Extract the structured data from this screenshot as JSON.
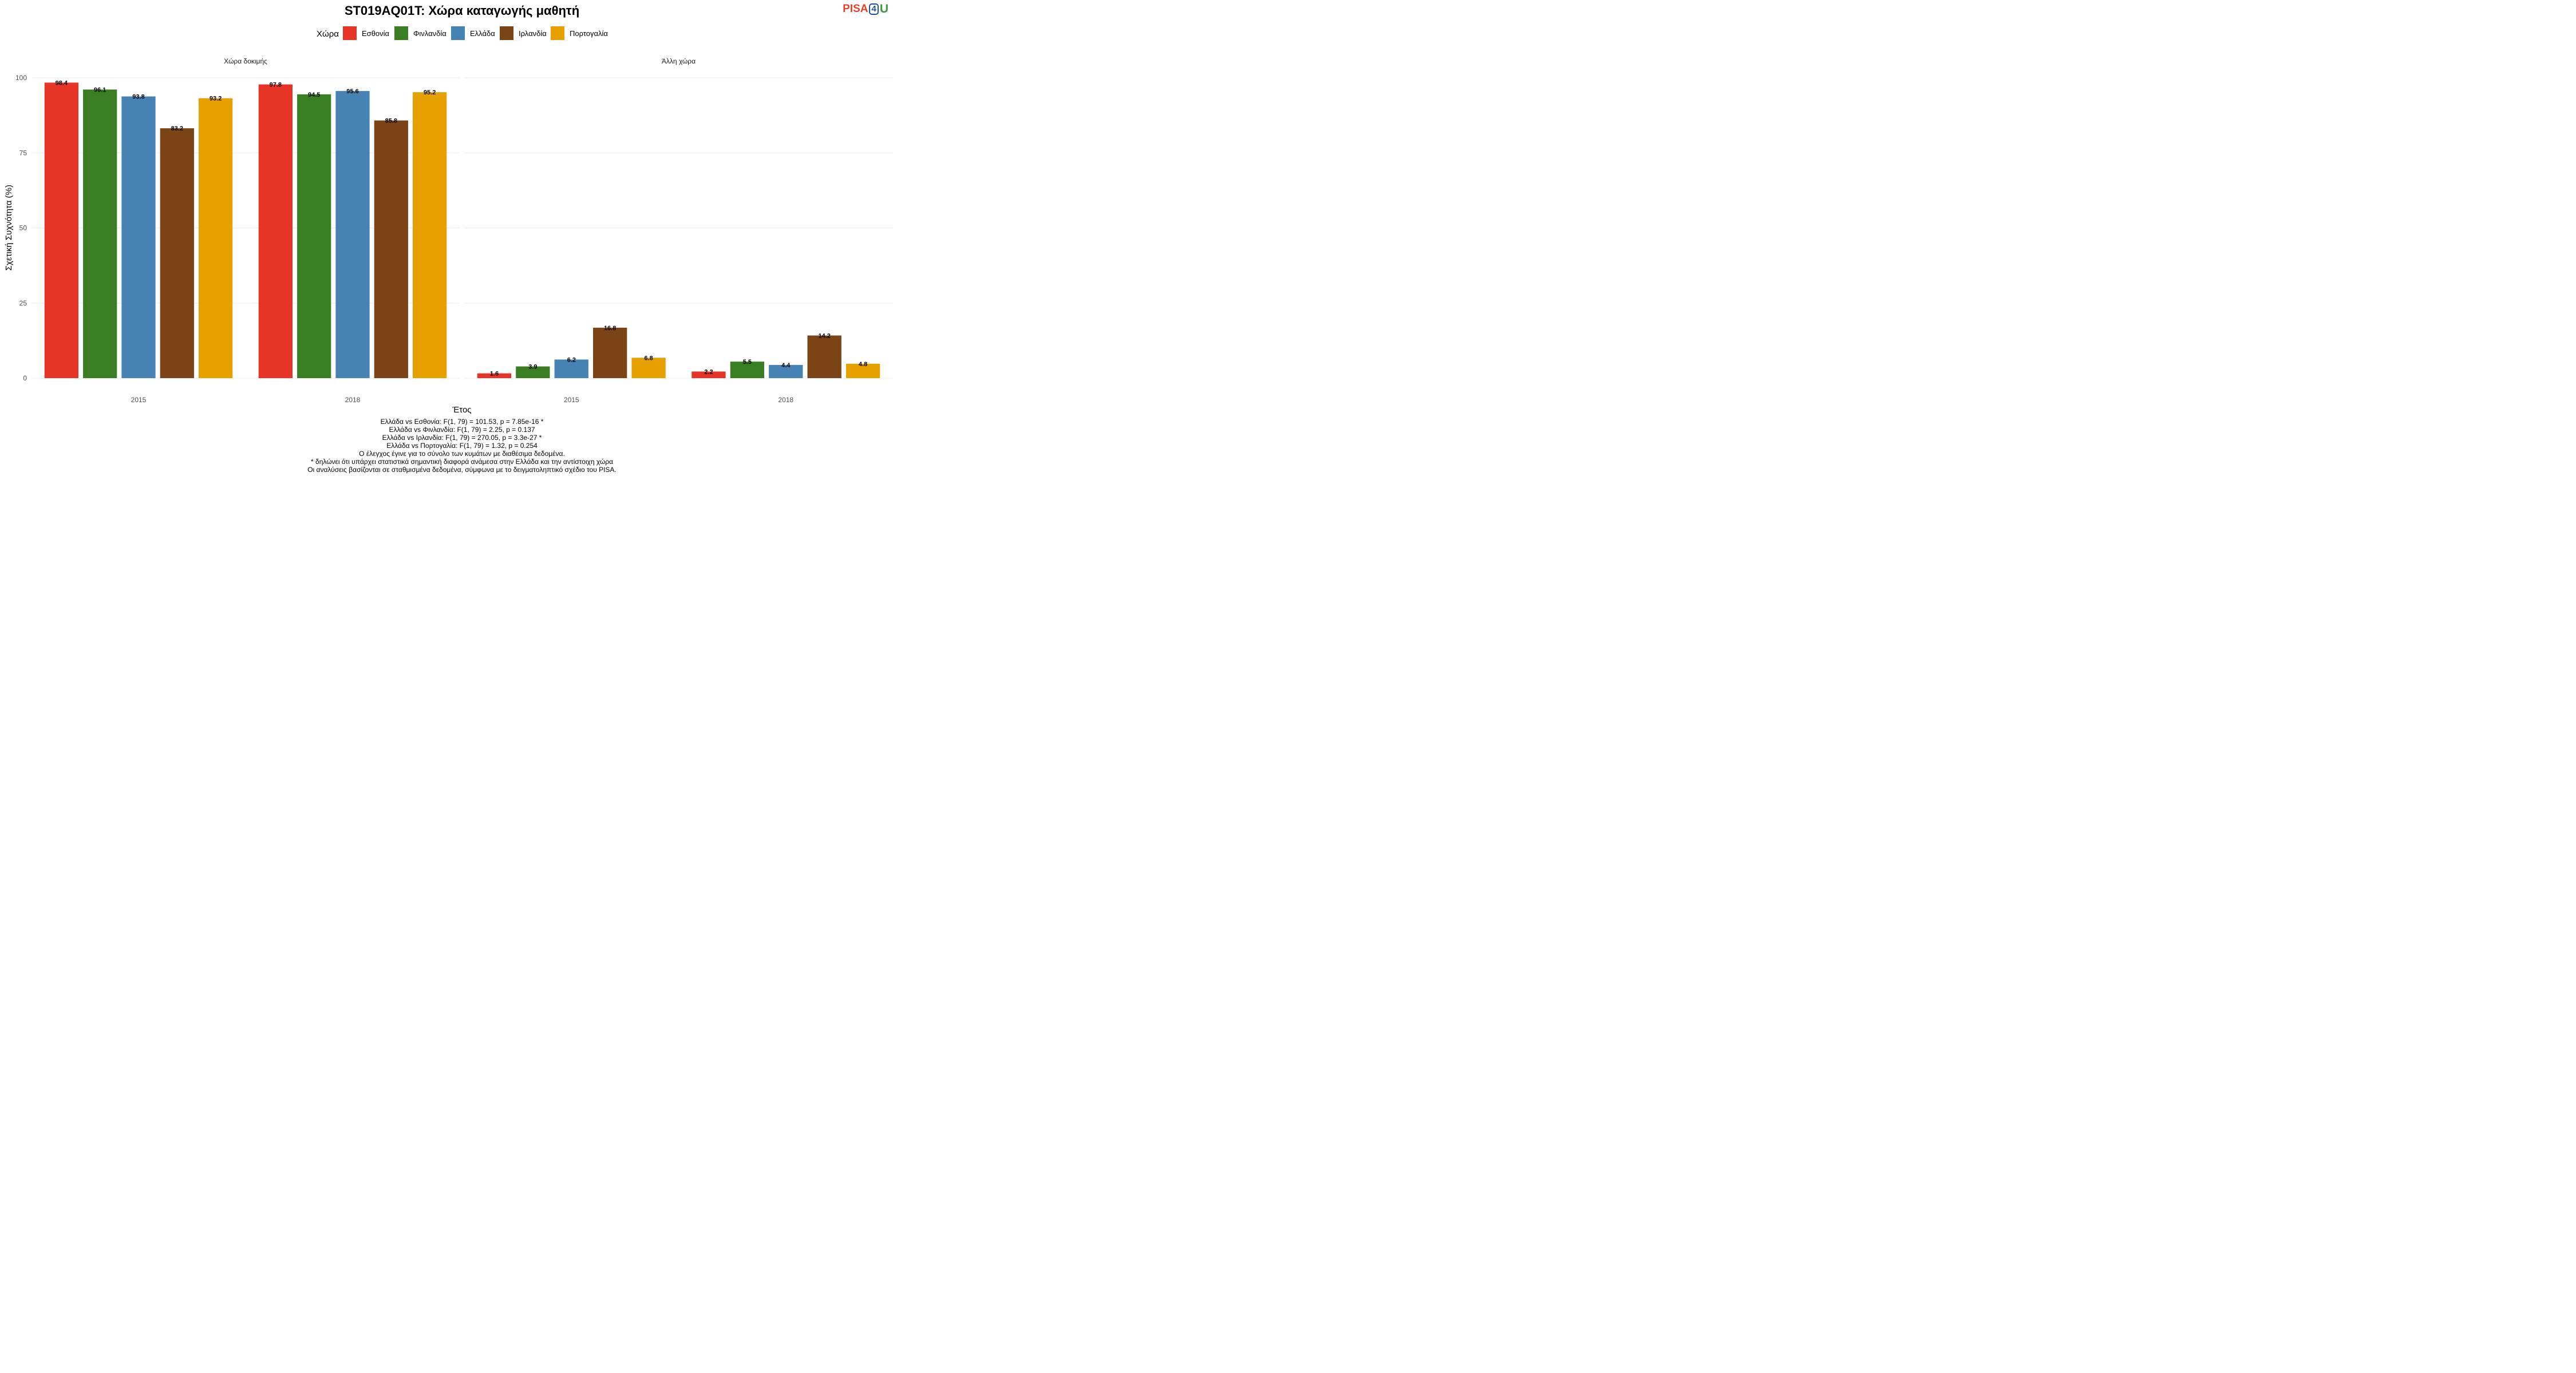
{
  "title": "ST019AQ01T: Χώρα καταγωγής μαθητή",
  "logo": {
    "part1": "PISA",
    "part2": "4",
    "part3": "U"
  },
  "legend": {
    "title": "Χώρα",
    "items": [
      {
        "label": "Εσθονία",
        "color": "#e63527"
      },
      {
        "label": "Φινλανδία",
        "color": "#3a7e23"
      },
      {
        "label": "Ελλάδα",
        "color": "#4682b4"
      },
      {
        "label": "Ιρλανδία",
        "color": "#7b4416"
      },
      {
        "label": "Πορτογαλία",
        "color": "#e6a000"
      }
    ]
  },
  "chart_data": {
    "type": "bar",
    "xlabel": "Έτος",
    "ylabel": "Σχετική Συχνότητα (%)",
    "ylim": [
      0,
      100
    ],
    "yticks": [
      0,
      25,
      50,
      75,
      100
    ],
    "grid": true,
    "legend_position": "top",
    "categories": [
      "2015",
      "2018"
    ],
    "panels": [
      {
        "title": "Χώρα δοκιμής",
        "series": [
          {
            "name": "Εσθονία",
            "values": [
              98.4,
              97.8
            ]
          },
          {
            "name": "Φινλανδία",
            "values": [
              96.1,
              94.5
            ]
          },
          {
            "name": "Ελλάδα",
            "values": [
              93.8,
              95.6
            ]
          },
          {
            "name": "Ιρλανδία",
            "values": [
              83.2,
              85.8
            ]
          },
          {
            "name": "Πορτογαλία",
            "values": [
              93.2,
              95.2
            ]
          }
        ]
      },
      {
        "title": "Άλλη χώρα",
        "series": [
          {
            "name": "Εσθονία",
            "values": [
              1.6,
              2.2
            ]
          },
          {
            "name": "Φινλανδία",
            "values": [
              3.9,
              5.5
            ]
          },
          {
            "name": "Ελλάδα",
            "values": [
              6.2,
              4.4
            ]
          },
          {
            "name": "Ιρλανδία",
            "values": [
              16.8,
              14.2
            ]
          },
          {
            "name": "Πορτογαλία",
            "values": [
              6.8,
              4.8
            ]
          }
        ]
      }
    ]
  },
  "caption": [
    "Ελλάδα vs Εσθονία: F(1, 79) = 101.53, p = 7.85e-16 *",
    "Ελλάδα vs Φινλανδία: F(1, 79) = 2.25, p = 0.137",
    "Ελλάδα vs Ιρλανδία: F(1, 79) = 270.05, p = 3.3e-27 *",
    "Ελλάδα vs Πορτογαλία: F(1, 79) = 1.32, p = 0.254",
    "Ο έλεγχος έγινε για το σύνολο των κυμάτων με διαθέσιμα δεδομένα.",
    "* δηλώνει ότι υπάρχει στατιστικά σημαντική διαφορά ανάμεσα στην Ελλάδα και την αντίστοιχη χώρα",
    "Οι αναλύσεις βασίζονται σε σταθμισμένα δεδομένα, σύμφωνα με το δειγματοληπτικό σχέδιο του PISA."
  ]
}
